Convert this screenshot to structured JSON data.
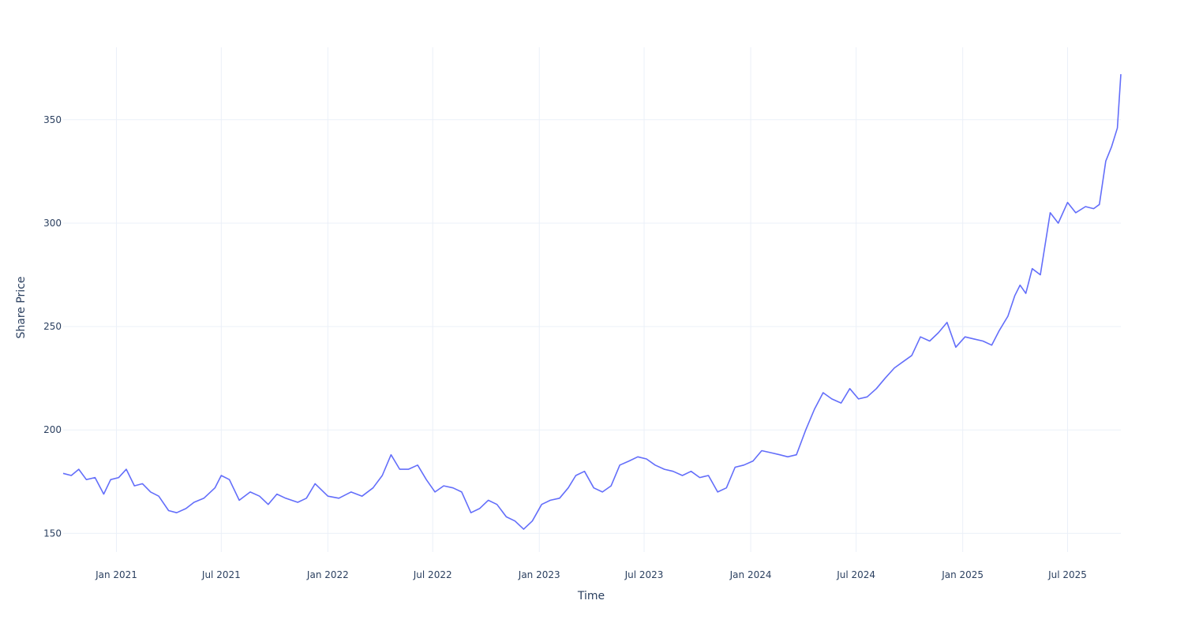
{
  "chart_data": {
    "type": "line",
    "title": "",
    "xlabel": "Time",
    "ylabel": "Share Price",
    "grid": true,
    "legend": "none",
    "line_color": "#636efa",
    "grid_color": "#ebf0f8",
    "text_color": "#2a3f5f",
    "xlim": [
      "2020-10-01",
      "2025-10-01"
    ],
    "ylim": [
      141,
      385
    ],
    "y_ticks": [
      150,
      200,
      250,
      300,
      350
    ],
    "x_ticks": [
      {
        "date": "2021-01-01",
        "label": "Jan 2021"
      },
      {
        "date": "2021-07-01",
        "label": "Jul 2021"
      },
      {
        "date": "2022-01-01",
        "label": "Jan 2022"
      },
      {
        "date": "2022-07-01",
        "label": "Jul 2022"
      },
      {
        "date": "2023-01-01",
        "label": "Jan 2023"
      },
      {
        "date": "2023-07-01",
        "label": "Jul 2023"
      },
      {
        "date": "2024-01-01",
        "label": "Jan 2024"
      },
      {
        "date": "2024-07-01",
        "label": "Jul 2024"
      },
      {
        "date": "2025-01-01",
        "label": "Jan 2025"
      },
      {
        "date": "2025-07-01",
        "label": "Jul 2025"
      }
    ],
    "series": [
      {
        "x": [
          "2020-10-01",
          "2020-10-15",
          "2020-10-28",
          "2020-11-10",
          "2020-11-25",
          "2020-12-10",
          "2020-12-22",
          "2021-01-05",
          "2021-01-18",
          "2021-02-01",
          "2021-02-15",
          "2021-03-01",
          "2021-03-15",
          "2021-04-01",
          "2021-04-15",
          "2021-05-01",
          "2021-05-15",
          "2021-06-01",
          "2021-06-20",
          "2021-07-01",
          "2021-07-15",
          "2021-08-01",
          "2021-08-20",
          "2021-09-05",
          "2021-09-20",
          "2021-10-05",
          "2021-10-20",
          "2021-11-10",
          "2021-11-25",
          "2021-12-10",
          "2022-01-01",
          "2022-01-20",
          "2022-02-10",
          "2022-03-01",
          "2022-03-20",
          "2022-04-05",
          "2022-04-20",
          "2022-05-05",
          "2022-05-20",
          "2022-06-05",
          "2022-06-20",
          "2022-07-05",
          "2022-07-20",
          "2022-08-05",
          "2022-08-20",
          "2022-09-05",
          "2022-09-20",
          "2022-10-05",
          "2022-10-20",
          "2022-11-05",
          "2022-11-20",
          "2022-12-05",
          "2022-12-20",
          "2023-01-05",
          "2023-01-20",
          "2023-02-05",
          "2023-02-20",
          "2023-03-05",
          "2023-03-20",
          "2023-04-05",
          "2023-04-20",
          "2023-05-05",
          "2023-05-20",
          "2023-06-05",
          "2023-06-20",
          "2023-07-05",
          "2023-07-20",
          "2023-08-05",
          "2023-08-20",
          "2023-09-05",
          "2023-09-20",
          "2023-10-05",
          "2023-10-20",
          "2023-11-05",
          "2023-11-20",
          "2023-12-05",
          "2023-12-20",
          "2024-01-05",
          "2024-01-20",
          "2024-02-05",
          "2024-02-20",
          "2024-03-05",
          "2024-03-20",
          "2024-04-05",
          "2024-04-20",
          "2024-05-05",
          "2024-05-20",
          "2024-06-05",
          "2024-06-20",
          "2024-07-05",
          "2024-07-20",
          "2024-08-05",
          "2024-08-20",
          "2024-09-05",
          "2024-09-20",
          "2024-10-05",
          "2024-10-20",
          "2024-11-05",
          "2024-11-20",
          "2024-12-05",
          "2024-12-20",
          "2025-01-05",
          "2025-01-20",
          "2025-02-05",
          "2025-02-20",
          "2025-03-05",
          "2025-03-20",
          "2025-04-01",
          "2025-04-10",
          "2025-04-20",
          "2025-05-01",
          "2025-05-15",
          "2025-06-01",
          "2025-06-15",
          "2025-07-01",
          "2025-07-15",
          "2025-08-01",
          "2025-08-15",
          "2025-08-25",
          "2025-09-05",
          "2025-09-15",
          "2025-09-25",
          "2025-10-01"
        ],
        "values": [
          179,
          178,
          181,
          176,
          177,
          169,
          176,
          177,
          181,
          173,
          174,
          170,
          168,
          161,
          160,
          162,
          165,
          167,
          172,
          178,
          176,
          166,
          170,
          168,
          164,
          169,
          167,
          165,
          167,
          174,
          168,
          167,
          170,
          168,
          172,
          178,
          188,
          181,
          181,
          183,
          176,
          170,
          173,
          172,
          170,
          160,
          162,
          166,
          164,
          158,
          156,
          152,
          156,
          164,
          166,
          167,
          172,
          178,
          180,
          172,
          170,
          173,
          183,
          185,
          187,
          186,
          183,
          181,
          180,
          178,
          180,
          177,
          178,
          170,
          172,
          182,
          183,
          185,
          190,
          189,
          188,
          187,
          188,
          200,
          210,
          218,
          215,
          213,
          220,
          215,
          216,
          220,
          225,
          230,
          233,
          236,
          245,
          243,
          247,
          252,
          240,
          245,
          244,
          243,
          241,
          248,
          255,
          265,
          270,
          266,
          278,
          275,
          305,
          300,
          310,
          305,
          308,
          307,
          309,
          330,
          337,
          346,
          372
        ]
      }
    ]
  }
}
